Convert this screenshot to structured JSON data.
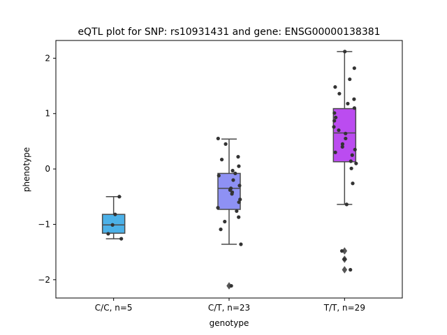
{
  "chart_data": {
    "type": "box",
    "title": "eQTL plot for SNP: rs10931431 and gene: ENSG00000138381",
    "xlabel": "genotype",
    "ylabel": "phenotype",
    "ylim": [
      -2.33,
      2.32
    ],
    "yticks": [
      -2,
      -1,
      0,
      1,
      2
    ],
    "ytick_labels": [
      "−2",
      "−1",
      "0",
      "1",
      "2"
    ],
    "grid": false,
    "categories": [
      "C/C, n=5",
      "C/T, n=23",
      "T/T, n=29"
    ],
    "colors": [
      "#4cb1e8",
      "#8e91f4",
      "#bb4cf0"
    ],
    "boxes": [
      {
        "q1": -1.16,
        "median": -1.01,
        "q3": -0.82,
        "whisker_low": -1.26,
        "whisker_high": -0.5,
        "outliers": []
      },
      {
        "q1": -0.73,
        "median": -0.35,
        "q3": -0.08,
        "whisker_low": -1.36,
        "whisker_high": 0.54,
        "outliers": [
          -2.11
        ]
      },
      {
        "q1": 0.13,
        "median": 0.65,
        "q3": 1.09,
        "whisker_low": -0.64,
        "whisker_high": 2.12,
        "outliers": [
          -1.48,
          -1.63,
          -1.82
        ]
      }
    ],
    "points": [
      [
        -0.5,
        -0.82,
        -1.01,
        -1.17,
        -1.26
      ],
      [
        0.55,
        0.45,
        0.22,
        0.17,
        0.05,
        -0.03,
        -0.08,
        -0.12,
        -0.2,
        -0.3,
        -0.35,
        -0.38,
        -0.42,
        -0.45,
        -0.55,
        -0.6,
        -0.7,
        -0.76,
        -0.87,
        -0.95,
        -1.09,
        -1.36,
        -2.11
      ],
      [
        2.12,
        1.82,
        1.62,
        1.48,
        1.36,
        1.26,
        1.18,
        1.1,
        1.01,
        0.93,
        0.87,
        0.76,
        0.7,
        0.64,
        0.55,
        0.45,
        0.4,
        0.35,
        0.3,
        0.25,
        0.14,
        0.1,
        0.01,
        -0.26,
        -0.64,
        -1.48,
        -1.63,
        -1.63,
        -1.82
      ]
    ]
  }
}
